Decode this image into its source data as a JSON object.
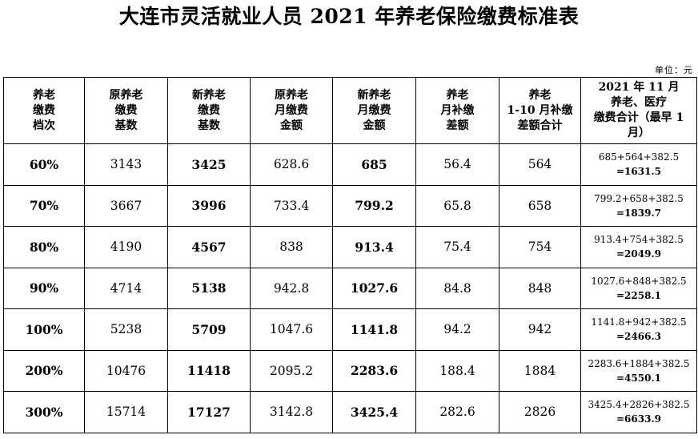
{
  "title": "大连市灵活就业人员 2021 年养老保险缴费标准表",
  "unit": "单位：元",
  "columns": [
    [
      "养老",
      "缴费",
      "档次"
    ],
    [
      "原养老",
      "缴费",
      "基数"
    ],
    [
      "新养老",
      "缴费",
      "基数"
    ],
    [
      "原养老",
      "月缴费",
      "金额"
    ],
    [
      "新养老",
      "月缴费",
      "金额"
    ],
    [
      "养老",
      "月补缴",
      "差额"
    ],
    [
      "养老",
      "1-10 月补缴",
      "差额合计"
    ],
    [
      "2021 年 11 月",
      "养老、医疗",
      "缴费合计（最早 1",
      "月）"
    ]
  ],
  "rows": [
    {
      "grade": "60%",
      "old_base": "3143",
      "new_base": "3425",
      "old_monthly": "628.6",
      "new_monthly": "685",
      "monthly_diff": "56.4",
      "diff_total": "564",
      "sum_expr": "685+564+382.5",
      "sum_total": "=1631.5"
    },
    {
      "grade": "70%",
      "old_base": "3667",
      "new_base": "3996",
      "old_monthly": "733.4",
      "new_monthly": "799.2",
      "monthly_diff": "65.8",
      "diff_total": "658",
      "sum_expr": "799.2+658+382.5",
      "sum_total": "=1839.7"
    },
    {
      "grade": "80%",
      "old_base": "4190",
      "new_base": "4567",
      "old_monthly": "838",
      "new_monthly": "913.4",
      "monthly_diff": "75.4",
      "diff_total": "754",
      "sum_expr": "913.4+754+382.5",
      "sum_total": "=2049.9"
    },
    {
      "grade": "90%",
      "old_base": "4714",
      "new_base": "5138",
      "old_monthly": "942.8",
      "new_monthly": "1027.6",
      "monthly_diff": "84.8",
      "diff_total": "848",
      "sum_expr": "1027.6+848+382.5",
      "sum_total": "=2258.1"
    },
    {
      "grade": "100%",
      "old_base": "5238",
      "new_base": "5709",
      "old_monthly": "1047.6",
      "new_monthly": "1141.8",
      "monthly_diff": "94.2",
      "diff_total": "942",
      "sum_expr": "1141.8+942+382.5",
      "sum_total": "=2466.3"
    },
    {
      "grade": "200%",
      "old_base": "10476",
      "new_base": "11418",
      "old_monthly": "2095.2",
      "new_monthly": "2283.6",
      "monthly_diff": "188.4",
      "diff_total": "1884",
      "sum_expr": "2283.6+1884+382.5",
      "sum_total": "=4550.1"
    },
    {
      "grade": "300%",
      "old_base": "15714",
      "new_base": "17127",
      "old_monthly": "3142.8",
      "new_monthly": "3425.4",
      "monthly_diff": "282.6",
      "diff_total": "2826",
      "sum_expr": "3425.4+2826+382.5",
      "sum_total": "=6633.9"
    }
  ]
}
